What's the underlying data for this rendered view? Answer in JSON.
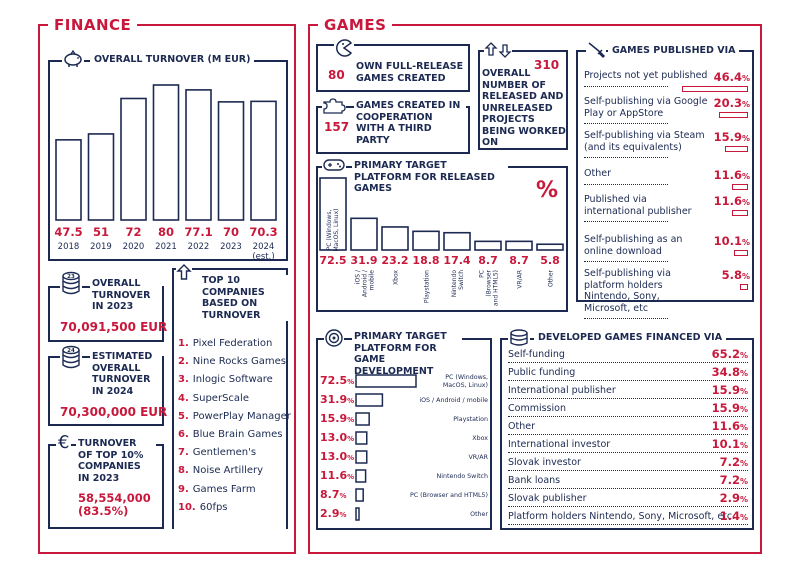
{
  "finance": {
    "title": "FINANCE",
    "turnover_title": "OVERALL TURNOVER (M EUR)",
    "overall_2023_title": "OVERALL TURNOVER IN 2023",
    "overall_2023_value": "70,091,500 EUR",
    "est_2024_title": "ESTIMATED OVERALL TURNOVER IN 2024",
    "est_2024_value": "70,300,000 EUR",
    "top10_title": "TURNOVER OF TOP 10% COMPANIES IN 2023",
    "top10_value": "58,554,000 (83.5%)",
    "top_companies_title": "TOP 10 COMPANIES BASED ON TURNOVER",
    "top_companies": [
      {
        "rank": "1.",
        "name": "Pixel Federation"
      },
      {
        "rank": "2.",
        "name": "Nine Rocks Games"
      },
      {
        "rank": "3.",
        "name": "Inlogic Software"
      },
      {
        "rank": "4.",
        "name": "SuperScale"
      },
      {
        "rank": "5.",
        "name": "PowerPlay Manager"
      },
      {
        "rank": "6.",
        "name": "Blue Brain Games"
      },
      {
        "rank": "7.",
        "name": "Gentlemen's"
      },
      {
        "rank": "8.",
        "name": "Noise Artillery"
      },
      {
        "rank": "9.",
        "name": "Games Farm"
      },
      {
        "rank": "10.",
        "name": "60fps"
      }
    ],
    "icon_badge_2023": "23",
    "icon_badge_2024": "24"
  },
  "games": {
    "title": "GAMES",
    "own_value": "80",
    "own_label": "OWN FULL-RELEASE GAMES CREATED",
    "coop_value": "157",
    "coop_label": "GAMES CREATED IN COOPERATION WITH A THIRD PARTY",
    "overall_value": "310",
    "overall_label": "OVERALL NUMBER OF RELEASED AND UNRELEASED PROJECTS BEING WORKED ON",
    "platform_released_title": "PRIMARY TARGET PLATFORM FOR RELEASED GAMES",
    "percent_sign": "%",
    "published_title": "GAMES PUBLISHED VIA",
    "dev_platform_title": "PRIMARY TARGET PLATFORM FOR GAME DEVELOPMENT",
    "financed_title": "DEVELOPED GAMES FINANCED VIA"
  },
  "chart_data": [
    {
      "type": "bar",
      "title": "OVERALL TURNOVER (M EUR)",
      "categories": [
        "2018",
        "2019",
        "2020",
        "2021",
        "2022",
        "2023",
        "2024 (est.)"
      ],
      "values": [
        47.5,
        51,
        72,
        80,
        77.1,
        70,
        70.3
      ],
      "value_labels": [
        "47.5",
        "51",
        "72",
        "80",
        "77.1",
        "70",
        "70.3"
      ],
      "ylim": [
        0,
        80
      ]
    },
    {
      "type": "bar",
      "title": "PRIMARY TARGET PLATFORM FOR RELEASED GAMES",
      "categories": [
        "PC (Windows, MacOS, Linux)",
        "iOS / Android / mobile",
        "Xbox",
        "Playstation",
        "Nintendo Switch",
        "PC (Browser and HTML5)",
        "VR/AR",
        "Other"
      ],
      "values": [
        72.5,
        31.9,
        23.2,
        18.8,
        17.4,
        8.7,
        8.7,
        5.8
      ],
      "value_labels": [
        "72.5",
        "31.9",
        "23.2",
        "18.8",
        "17.4",
        "8.7",
        "8.7",
        "5.8"
      ],
      "unit": "%"
    },
    {
      "type": "bar",
      "title": "GAMES PUBLISHED VIA",
      "categories": [
        "Projects not yet published",
        "Self-publishing via Google Play or AppStore",
        "Self-publishing via Steam (and its equivalents)",
        "Other",
        "Published via international publisher",
        "Self-publishing as an online download",
        "Self-publishing via platform holders Nintendo, Sony, Microsoft, etc"
      ],
      "values": [
        46.4,
        20.3,
        15.9,
        11.6,
        11.6,
        10.1,
        5.8
      ],
      "value_labels": [
        "46.4",
        "20.3",
        "15.9",
        "11.6",
        "11.6",
        "10.1",
        "5.8"
      ],
      "unit": "%"
    },
    {
      "type": "bar",
      "title": "PRIMARY TARGET PLATFORM FOR GAME DEVELOPMENT",
      "categories": [
        "PC (Windows, MacOS, Linux)",
        "iOS / Android / mobile",
        "Playstation",
        "Xbox",
        "VR/AR",
        "Nintendo Switch",
        "PC (Browser and HTML5)",
        "Other"
      ],
      "values": [
        72.5,
        31.9,
        15.9,
        13.0,
        13.0,
        11.6,
        8.7,
        2.9
      ],
      "value_labels": [
        "72.5",
        "31.9",
        "15.9",
        "13.0",
        "13.0",
        "11.6",
        "8.7",
        "2.9"
      ],
      "unit": "%"
    },
    {
      "type": "table",
      "title": "DEVELOPED GAMES FINANCED VIA",
      "categories": [
        "Self-funding",
        "Public funding",
        "International publisher",
        "Commission",
        "Other",
        "International investor",
        "Slovak investor",
        "Bank loans",
        "Slovak publisher",
        "Platform holders Nintendo, Sony, Microsoft, etc."
      ],
      "values": [
        65.2,
        34.8,
        15.9,
        15.9,
        11.6,
        10.1,
        7.2,
        7.2,
        2.9,
        1.4
      ],
      "value_labels": [
        "65.2",
        "34.8",
        "15.9",
        "15.9",
        "11.6",
        "10.1",
        "7.2",
        "7.2",
        "2.9",
        "1.4"
      ],
      "unit": "%"
    }
  ]
}
